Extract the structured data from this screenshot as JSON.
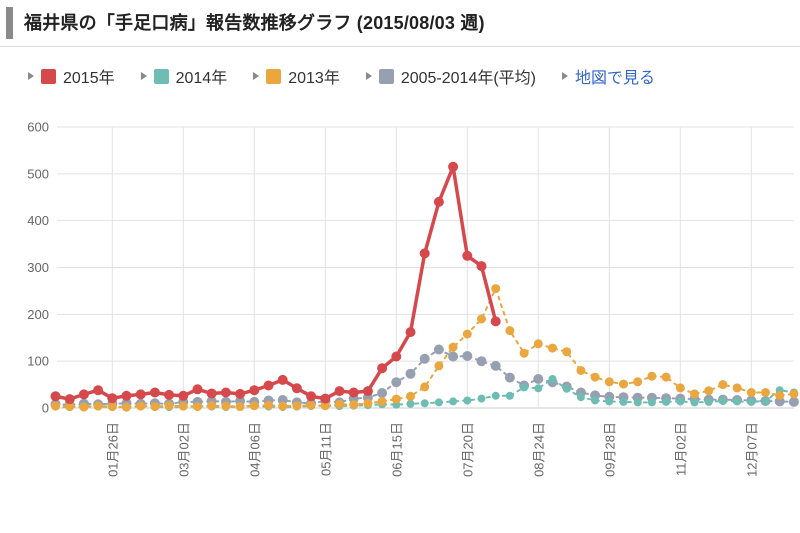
{
  "header": {
    "title": "福井県の「手足口病」報告数推移グラフ (2015/08/03 週)"
  },
  "legend": {
    "items": [
      {
        "label": "2015年",
        "color": "#d5494d"
      },
      {
        "label": "2014年",
        "color": "#6fbdb2"
      },
      {
        "label": "2013年",
        "color": "#eaa63f"
      },
      {
        "label": "2005-2014年(平均)",
        "color": "#97a0b1"
      }
    ],
    "map_link_label": "地図で見る",
    "map_link_color": "#3366cc"
  },
  "chart_data": {
    "type": "line",
    "title": "福井県の「手足口病」報告数推移グラフ (2015/08/03 週)",
    "xlabel": "",
    "ylabel": "",
    "ylim": [
      0,
      600
    ],
    "y_ticks": [
      0,
      100,
      200,
      300,
      400,
      500,
      600
    ],
    "grid": true,
    "legend_position": "top",
    "n_points": 53,
    "x_unit": "week",
    "x_tick_labels": [
      "01月26日",
      "03月02日",
      "04月06日",
      "05月11日",
      "06月15日",
      "07月20日",
      "08月24日",
      "09月28日",
      "11月02日",
      "12月07日"
    ],
    "x_tick_indices": [
      4,
      9,
      14,
      19,
      24,
      29,
      34,
      39,
      44,
      49
    ],
    "axis_text_color": "#666666",
    "grid_color": "#e2e2e2",
    "series": [
      {
        "name": "2015年",
        "color": "#d5494d",
        "dash": "solid",
        "line_width": 3.5,
        "dot_radius": 5,
        "values": [
          25,
          19,
          29,
          38,
          21,
          26,
          29,
          33,
          28,
          26,
          40,
          31,
          33,
          30,
          38,
          48,
          60,
          42,
          25,
          20,
          36,
          33,
          36,
          85,
          110,
          162,
          330,
          440,
          515,
          325,
          303,
          185,
          null,
          null,
          null,
          null,
          null,
          null,
          null,
          null,
          null,
          null,
          null,
          null,
          null,
          null,
          null,
          null,
          null,
          null,
          null,
          null,
          null
        ]
      },
      {
        "name": "2014年",
        "color": "#6fbdb2",
        "dash": "dashed",
        "line_width": 2,
        "dot_radius": 4,
        "values": [
          3,
          2,
          4,
          3,
          2,
          3,
          4,
          3,
          2,
          3,
          4,
          3,
          2,
          3,
          4,
          3,
          2,
          3,
          4,
          5,
          4,
          5,
          6,
          8,
          7,
          9,
          10,
          12,
          14,
          16,
          20,
          26,
          26,
          44,
          42,
          62,
          41,
          23,
          16,
          14,
          13,
          12,
          12,
          13,
          14,
          12,
          13,
          15,
          14,
          13,
          15,
          38,
          33
        ]
      },
      {
        "name": "2013年",
        "color": "#eaa63f",
        "dash": "dashed",
        "line_width": 2,
        "dot_radius": 4.5,
        "values": [
          4,
          3,
          2,
          4,
          3,
          2,
          4,
          3,
          5,
          4,
          3,
          5,
          4,
          3,
          5,
          6,
          4,
          5,
          6,
          5,
          8,
          7,
          10,
          14,
          19,
          25,
          45,
          90,
          130,
          158,
          190,
          255,
          165,
          117,
          137,
          128,
          120,
          80,
          66,
          56,
          51,
          56,
          68,
          66,
          43,
          30,
          37,
          50,
          43,
          33,
          33,
          27,
          30
        ]
      },
      {
        "name": "2005-2014年(平均)",
        "color": "#97a0b1",
        "dash": "dashed",
        "line_width": 2,
        "dot_radius": 5,
        "values": [
          8,
          7,
          9,
          8,
          9,
          10,
          9,
          10,
          9,
          13,
          13,
          15,
          13,
          15,
          13,
          16,
          17,
          12,
          10,
          15,
          12,
          20,
          22,
          32,
          55,
          73,
          105,
          125,
          110,
          111,
          100,
          90,
          65,
          48,
          62,
          55,
          46,
          33,
          27,
          24,
          23,
          22,
          22,
          21,
          20,
          19,
          18,
          18,
          17,
          16,
          15,
          14,
          13
        ]
      }
    ]
  }
}
